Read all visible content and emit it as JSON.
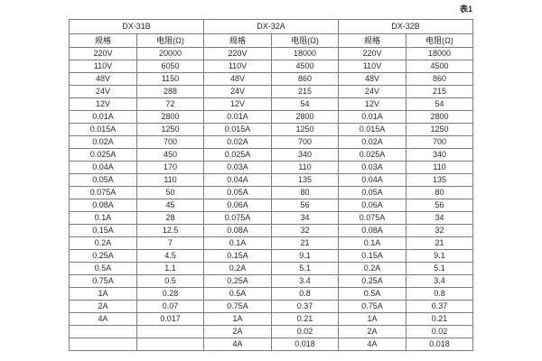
{
  "caption": "表1",
  "table": {
    "groups": [
      {
        "name": "DX-31B",
        "headers": [
          "规格",
          "电阻(Ω)"
        ],
        "rows": [
          [
            "220V",
            "20000"
          ],
          [
            "110V",
            "6050"
          ],
          [
            "48V",
            "1150"
          ],
          [
            "24V",
            "288"
          ],
          [
            "12V",
            "72"
          ],
          [
            "0.01A",
            "2800"
          ],
          [
            "0.015A",
            "1250"
          ],
          [
            "0.02A",
            "700"
          ],
          [
            "0.025A",
            "450"
          ],
          [
            "0.04A",
            "170"
          ],
          [
            "0.05A",
            "110"
          ],
          [
            "0.075A",
            "50"
          ],
          [
            "0.08A",
            "45"
          ],
          [
            "0.1A",
            "28"
          ],
          [
            "0.15A",
            "12.5"
          ],
          [
            "0.2A",
            "7"
          ],
          [
            "0.25A",
            "4.5"
          ],
          [
            "0.5A",
            "1.1"
          ],
          [
            "0.75A",
            "0.5"
          ],
          [
            "1A",
            "0.28"
          ],
          [
            "2A",
            "0.07"
          ],
          [
            "4A",
            "0.017"
          ],
          [
            "",
            ""
          ],
          [
            "",
            ""
          ]
        ]
      },
      {
        "name": "DX-32A",
        "headers": [
          "规格",
          "电阻(Ω)"
        ],
        "rows": [
          [
            "220V",
            "18000"
          ],
          [
            "110V",
            "4500"
          ],
          [
            "48V",
            "860"
          ],
          [
            "24V",
            "215"
          ],
          [
            "12V",
            "54"
          ],
          [
            "0.01A",
            "2800"
          ],
          [
            "0.015A",
            "1250"
          ],
          [
            "0.02A",
            "700"
          ],
          [
            "0.025A",
            "340"
          ],
          [
            "0.03A",
            "110"
          ],
          [
            "0.04A",
            "135"
          ],
          [
            "0.05A",
            "80"
          ],
          [
            "0.06A",
            "56"
          ],
          [
            "0.075A",
            "34"
          ],
          [
            "0.08A",
            "32"
          ],
          [
            "0.1A",
            "21"
          ],
          [
            "0.15A",
            "9.1"
          ],
          [
            "0.2A",
            "5.1"
          ],
          [
            "0.25A",
            "3.4"
          ],
          [
            "0.5A",
            "0.8"
          ],
          [
            "0.75A",
            "0.37"
          ],
          [
            "1A",
            "0.21"
          ],
          [
            "2A",
            "0.02"
          ],
          [
            "4A",
            "0.018"
          ]
        ]
      },
      {
        "name": "DX-32B",
        "headers": [
          "规格",
          "电阻(Ω)"
        ],
        "rows": [
          [
            "220V",
            "18000"
          ],
          [
            "110V",
            "4500"
          ],
          [
            "48V",
            "860"
          ],
          [
            "24V",
            "215"
          ],
          [
            "12V",
            "54"
          ],
          [
            "0.01A",
            "2800"
          ],
          [
            "0.015A",
            "1250"
          ],
          [
            "0.02A",
            "700"
          ],
          [
            "0.025A",
            "340"
          ],
          [
            "0.03A",
            "110"
          ],
          [
            "0.04A",
            "135"
          ],
          [
            "0.05A",
            "80"
          ],
          [
            "0.06A",
            "56"
          ],
          [
            "0.075A",
            "34"
          ],
          [
            "0.08A",
            "32"
          ],
          [
            "0.1A",
            "21"
          ],
          [
            "0.15A",
            "9.1"
          ],
          [
            "0.2A",
            "5.1"
          ],
          [
            "0.25A",
            "3.4"
          ],
          [
            "0.5A",
            "0.8"
          ],
          [
            "0.75A",
            "0.37"
          ],
          [
            "1A",
            "0.21"
          ],
          [
            "2A",
            "0.02"
          ],
          [
            "4A",
            "0.018"
          ]
        ]
      }
    ],
    "colors": {
      "border": "#7d7d7d",
      "text": "#2b2b2b",
      "background": "#ffffff"
    }
  }
}
